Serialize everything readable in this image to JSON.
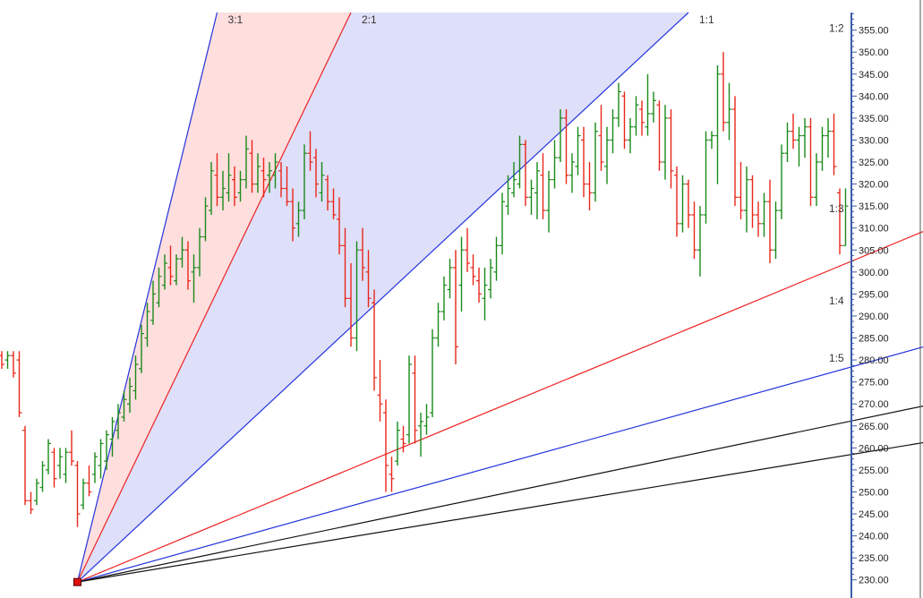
{
  "colors": {
    "up": "#1a8a1a",
    "down": "#e8261a",
    "axis": "#3b5ca8",
    "fan_1_1": "#2233dd",
    "fan_2_1": "#ee2222",
    "fan_3_1": "#2233dd",
    "fan_1_2": "#ee2222",
    "fan_1_3": "#2233dd",
    "fan_1_4": "#111111",
    "fan_1_5": "#111111",
    "shade_red": "#ffdede",
    "shade_blue": "#dedff8",
    "anchor": "#dd1111",
    "scroll_separator": "#555555"
  },
  "chart_data": {
    "type": "ohlc",
    "title": "",
    "xlabel": "",
    "ylabel": "",
    "ylim": [
      227.5,
      359
    ],
    "grid": false,
    "y_ticks": [
      "230.00",
      "235.00",
      "240.00",
      "245.00",
      "250.00",
      "255.00",
      "260.00",
      "265.00",
      "270.00",
      "275.00",
      "280.00",
      "285.00",
      "290.00",
      "295.00",
      "300.00",
      "305.00",
      "310.00",
      "315.00",
      "320.00",
      "325.00",
      "330.00",
      "335.00",
      "340.00",
      "345.00",
      "350.00",
      "355.00"
    ],
    "y_tick_values": [
      230,
      235,
      240,
      245,
      250,
      255,
      260,
      265,
      270,
      275,
      280,
      285,
      290,
      295,
      300,
      305,
      310,
      315,
      320,
      325,
      330,
      335,
      340,
      345,
      350,
      355
    ],
    "bars_ohlc": [
      [
        281,
        282,
        278,
        279
      ],
      [
        280,
        282,
        278,
        281
      ],
      [
        281,
        282,
        276,
        277
      ],
      [
        280,
        282,
        267,
        268
      ],
      [
        264,
        265,
        247,
        248
      ],
      [
        248,
        250,
        245,
        246
      ],
      [
        248,
        253,
        247,
        252
      ],
      [
        251,
        257,
        250,
        256
      ],
      [
        255,
        262,
        254,
        261
      ],
      [
        259,
        260,
        251,
        253
      ],
      [
        256,
        260,
        253,
        258
      ],
      [
        254,
        260,
        252,
        259
      ],
      [
        259,
        264,
        256,
        257
      ],
      [
        256,
        257,
        242,
        245
      ],
      [
        247,
        253,
        246,
        252
      ],
      [
        252,
        256,
        249,
        250
      ],
      [
        254,
        259,
        252,
        258
      ],
      [
        256,
        262,
        253,
        261
      ],
      [
        257,
        264,
        255,
        263
      ],
      [
        262,
        267,
        258,
        266
      ],
      [
        264,
        270,
        262,
        268
      ],
      [
        267,
        273,
        266,
        271
      ],
      [
        270,
        276,
        268,
        274
      ],
      [
        273,
        281,
        271,
        279
      ],
      [
        278,
        288,
        277,
        286
      ],
      [
        285,
        293,
        283,
        291
      ],
      [
        289,
        298,
        288,
        295
      ],
      [
        293,
        301,
        292,
        299
      ],
      [
        297,
        304,
        296,
        302
      ],
      [
        301,
        306,
        297,
        299
      ],
      [
        298,
        304,
        297,
        303
      ],
      [
        303,
        308,
        301,
        305
      ],
      [
        305,
        307,
        296,
        298
      ],
      [
        300,
        304,
        293,
        301
      ],
      [
        301,
        310,
        299,
        308
      ],
      [
        308,
        317,
        307,
        315
      ],
      [
        314,
        325,
        313,
        323
      ],
      [
        322,
        327,
        315,
        317
      ],
      [
        317,
        323,
        314,
        319
      ],
      [
        318,
        327,
        316,
        322
      ],
      [
        321,
        324,
        315,
        317
      ],
      [
        318,
        323,
        316,
        321
      ],
      [
        321,
        331,
        319,
        328
      ],
      [
        327,
        330,
        318,
        320
      ],
      [
        320,
        327,
        318,
        324
      ],
      [
        323,
        326,
        317,
        321
      ],
      [
        322,
        325,
        318,
        323
      ],
      [
        322,
        327,
        319,
        325
      ],
      [
        323,
        325,
        317,
        319
      ],
      [
        319,
        324,
        315,
        316
      ],
      [
        316,
        319,
        307,
        310
      ],
      [
        311,
        316,
        308,
        314
      ],
      [
        314,
        329,
        312,
        327
      ],
      [
        327,
        332,
        323,
        325
      ],
      [
        326,
        328,
        317,
        320
      ],
      [
        318,
        325,
        316,
        322
      ],
      [
        321,
        322,
        314,
        316
      ],
      [
        316,
        319,
        312,
        313
      ],
      [
        312,
        317,
        304,
        306
      ],
      [
        306,
        310,
        292,
        294
      ],
      [
        294,
        302,
        283,
        285
      ],
      [
        285,
        307,
        282,
        305
      ],
      [
        305,
        310,
        298,
        301
      ],
      [
        300,
        305,
        292,
        294
      ],
      [
        293,
        296,
        273,
        276
      ],
      [
        272,
        280,
        266,
        270
      ],
      [
        268,
        271,
        250,
        256
      ],
      [
        254,
        258,
        250,
        253
      ],
      [
        257,
        266,
        256,
        264
      ],
      [
        262,
        265,
        259,
        261
      ],
      [
        263,
        281,
        261,
        279
      ],
      [
        277,
        281,
        261,
        264
      ],
      [
        265,
        268,
        258,
        266
      ],
      [
        265,
        270,
        263,
        267
      ],
      [
        268,
        287,
        267,
        285
      ],
      [
        285,
        293,
        283,
        291
      ],
      [
        291,
        299,
        289,
        297
      ],
      [
        296,
        303,
        294,
        301
      ],
      [
        301,
        305,
        279,
        283
      ],
      [
        297,
        308,
        291,
        305
      ],
      [
        305,
        310,
        300,
        302
      ],
      [
        301,
        304,
        297,
        299
      ],
      [
        298,
        301,
        293,
        295
      ],
      [
        294,
        301,
        289,
        297
      ],
      [
        296,
        303,
        294,
        301
      ],
      [
        300,
        308,
        298,
        306
      ],
      [
        306,
        318,
        304,
        316
      ],
      [
        315,
        322,
        313,
        319
      ],
      [
        318,
        325,
        317,
        321
      ],
      [
        320,
        331,
        319,
        329
      ],
      [
        329,
        330,
        315,
        317
      ],
      [
        317,
        321,
        313,
        319
      ],
      [
        318,
        325,
        312,
        323
      ],
      [
        322,
        327,
        312,
        314
      ],
      [
        314,
        323,
        309,
        321
      ],
      [
        321,
        330,
        319,
        326
      ],
      [
        326,
        337,
        325,
        335
      ],
      [
        335,
        337,
        320,
        322
      ],
      [
        322,
        327,
        318,
        325
      ],
      [
        324,
        333,
        322,
        331
      ],
      [
        330,
        333,
        317,
        320
      ],
      [
        320,
        325,
        314,
        318
      ],
      [
        318,
        334,
        316,
        332
      ],
      [
        331,
        338,
        323,
        325
      ],
      [
        324,
        333,
        320,
        330
      ],
      [
        330,
        337,
        327,
        335
      ],
      [
        335,
        343,
        333,
        341
      ],
      [
        340,
        341,
        328,
        330
      ],
      [
        330,
        335,
        327,
        333
      ],
      [
        333,
        340,
        331,
        338
      ],
      [
        337,
        339,
        331,
        334
      ],
      [
        333,
        345,
        331,
        336
      ],
      [
        336,
        341,
        334,
        339
      ],
      [
        338,
        339,
        323,
        325
      ],
      [
        325,
        338,
        321,
        335
      ],
      [
        335,
        337,
        319,
        323
      ],
      [
        322,
        324,
        308,
        311
      ],
      [
        311,
        322,
        309,
        320
      ],
      [
        320,
        321,
        310,
        313
      ],
      [
        313,
        316,
        303,
        305
      ],
      [
        305,
        315,
        299,
        313
      ],
      [
        313,
        332,
        311,
        330
      ],
      [
        330,
        332,
        328,
        331
      ],
      [
        331,
        347,
        320,
        345
      ],
      [
        345,
        350,
        332,
        334
      ],
      [
        334,
        343,
        330,
        337
      ],
      [
        337,
        340,
        315,
        317
      ],
      [
        317,
        325,
        312,
        314
      ],
      [
        314,
        324,
        309,
        321
      ],
      [
        321,
        322,
        310,
        313
      ],
      [
        313,
        316,
        308,
        311
      ],
      [
        311,
        318,
        308,
        316
      ],
      [
        316,
        321,
        302,
        305
      ],
      [
        305,
        316,
        303,
        314
      ],
      [
        314,
        329,
        312,
        327
      ],
      [
        327,
        334,
        325,
        332
      ],
      [
        332,
        336,
        328,
        330
      ],
      [
        330,
        333,
        324,
        331
      ],
      [
        331,
        335,
        326,
        333
      ],
      [
        333,
        335,
        315,
        317
      ],
      [
        317,
        327,
        315,
        325
      ],
      [
        325,
        333,
        323,
        331
      ],
      [
        331,
        335,
        326,
        332
      ],
      [
        332,
        336,
        322,
        324
      ],
      [
        318,
        319,
        304,
        306
      ],
      [
        306,
        319,
        306,
        315
      ]
    ],
    "gann_fan": {
      "anchor_bar": 13,
      "anchor_price": 229.5,
      "lines": [
        {
          "label": "3:1",
          "end_bar": 37,
          "end_price": 359
        },
        {
          "label": "2:1",
          "end_bar": 60,
          "end_price": 359
        },
        {
          "label": "1:1",
          "end_bar": 118,
          "end_price": 359
        },
        {
          "label": "1:2",
          "end_bar": 240,
          "end_price": 354
        },
        {
          "label": "1:3",
          "end_bar": 240,
          "end_price": 313
        },
        {
          "label": "1:4",
          "end_bar": 240,
          "end_price": 292
        },
        {
          "label": "1:5",
          "end_bar": 240,
          "end_price": 279
        }
      ]
    }
  }
}
